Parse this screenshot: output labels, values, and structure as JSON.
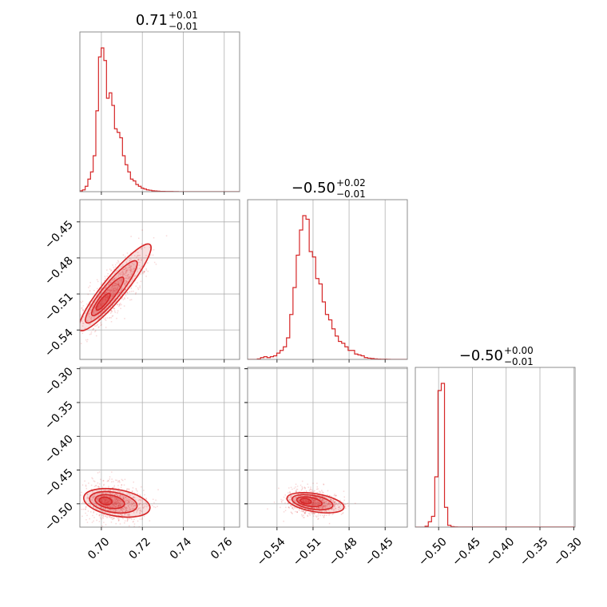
{
  "chart_data": {
    "type": "corner",
    "color": "#d62728",
    "parameters": [
      {
        "title": {
          "value": "0.71",
          "upper": "+0.01",
          "lower": "−0.01"
        },
        "range": [
          0.6895,
          0.7675
        ],
        "ticks": [
          0.7,
          0.72,
          0.74,
          0.76
        ],
        "tick_labels": [
          "0.70",
          "0.72",
          "0.74",
          "0.76"
        ]
      },
      {
        "title": {
          "value": "−0.50",
          "upper": "+0.02",
          "lower": "−0.01"
        },
        "range": [
          -0.5645,
          -0.4315
        ],
        "ticks": [
          -0.54,
          -0.51,
          -0.48,
          -0.45
        ],
        "tick_labels": [
          "−0.54",
          "−0.51",
          "−0.48",
          "−0.45"
        ]
      },
      {
        "title": {
          "value": "−0.50",
          "upper": "+0.00",
          "lower": "−0.01"
        },
        "range": [
          -0.5345,
          -0.298
        ],
        "ticks": [
          -0.5,
          -0.45,
          -0.4,
          -0.35,
          -0.3
        ],
        "tick_labels": [
          "−0.50",
          "−0.45",
          "−0.40",
          "−0.35",
          "−0.30"
        ]
      }
    ],
    "histograms": [
      {
        "param": 0,
        "bin_start": 0.6895,
        "bin_width": 0.0013,
        "counts": [
          0.5,
          1,
          3,
          7,
          11,
          20,
          45,
          75,
          80,
          73,
          52,
          55,
          48,
          35,
          33,
          30,
          20,
          15,
          11,
          7,
          6,
          4,
          3,
          2,
          1.5,
          1,
          0.8,
          0.5,
          0.4,
          0.3,
          0.2,
          0.2,
          0.1,
          0.1,
          0.1,
          0.05,
          0.05,
          0.02,
          0.02,
          0.02,
          0.02,
          0.02,
          0.02,
          0.02,
          0.02,
          0.02,
          0.02,
          0.02,
          0.02,
          0.02,
          0.02,
          0.02,
          0.02,
          0.02,
          0.02,
          0.02,
          0.02,
          0.02,
          0.02,
          0.02
        ]
      },
      {
        "param": 1,
        "bin_start": -0.5645,
        "bin_width": 0.0027,
        "counts": [
          0,
          0,
          0,
          0.3,
          1,
          1.5,
          1,
          1.5,
          2,
          3.5,
          5,
          7,
          12,
          25,
          40,
          58,
          72,
          80,
          78,
          60,
          57,
          45,
          42,
          32,
          25,
          22,
          17,
          13,
          10,
          9,
          7,
          5,
          5,
          3,
          2.5,
          2,
          1,
          0.7,
          0.5,
          0.3,
          0.2,
          0.1,
          0.1,
          0.05,
          0.02,
          0.02,
          0.02,
          0.02,
          0.02,
          0
        ]
      },
      {
        "param": 2,
        "bin_start": -0.5345,
        "bin_width": 0.0048,
        "counts": [
          0,
          0,
          0,
          0.5,
          3,
          6,
          28,
          76,
          80,
          11,
          1,
          0.3,
          0.1,
          0.05,
          0.05,
          0.05,
          0.05,
          0.05,
          0.05,
          0.05,
          0.05,
          0.05,
          0.05,
          0.05,
          0.05,
          0.05,
          0.05,
          0.05,
          0.05,
          0.05,
          0.05,
          0.05,
          0.05,
          0.05,
          0.05,
          0.05,
          0.05,
          0.05,
          0.05,
          0.05,
          0.05,
          0.05,
          0.05,
          0.05,
          0.05,
          0.05,
          0.05,
          0.05,
          0.05,
          0.05
        ]
      }
    ],
    "pairs": [
      {
        "x_param": 0,
        "y_param": 1,
        "center": [
          0.7045,
          -0.509
        ],
        "major_axis_end": [
          0.7225,
          -0.4715
        ],
        "minor_half_width": 0.0032,
        "density_extent": 1.65
      },
      {
        "x_param": 0,
        "y_param": 2,
        "center": [
          0.7055,
          -0.4975
        ],
        "major_axis_end": [
          0.7225,
          -0.5065
        ],
        "minor_half_width": 0.004,
        "density_extent": 1.6
      },
      {
        "x_param": 1,
        "y_param": 2,
        "center": [
          -0.511,
          -0.4975
        ],
        "major_axis_end": [
          -0.486,
          -0.505
        ],
        "minor_half_width": 0.004,
        "density_extent": 1.6
      }
    ],
    "grid": true
  }
}
